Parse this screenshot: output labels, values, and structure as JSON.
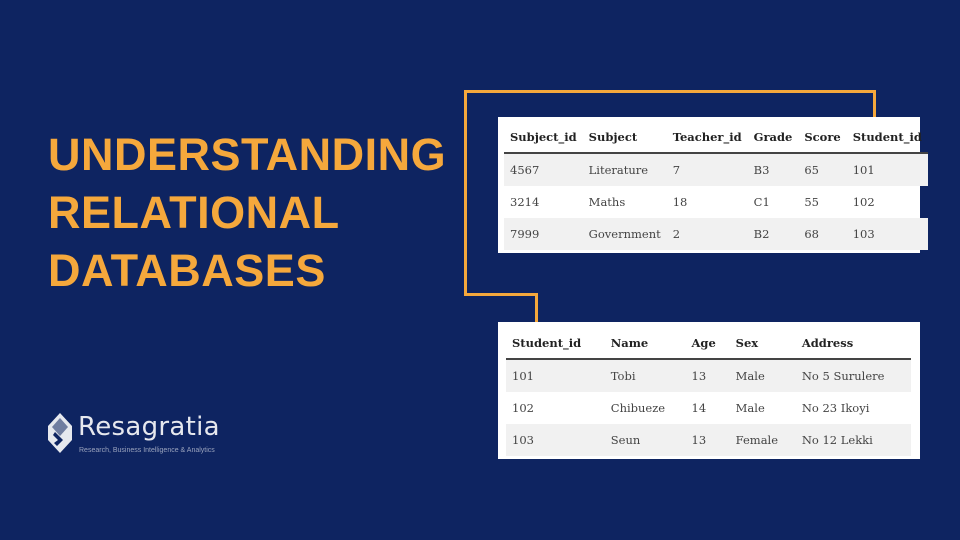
{
  "slide": {
    "title_lines": [
      "UNDERSTANDING",
      "RELATIONAL",
      "DATABASES"
    ],
    "accent_color": "#f5a83c",
    "background_color": "#0e2461"
  },
  "subjects_table": {
    "headers": [
      "Subject_id",
      "Subject",
      "Teacher_id",
      "Grade",
      "Score",
      "Student_id"
    ],
    "rows": [
      [
        "4567",
        "Literature",
        "7",
        "B3",
        "65",
        "101"
      ],
      [
        "3214",
        "Maths",
        "18",
        "C1",
        "55",
        "102"
      ],
      [
        "7999",
        "Government",
        "2",
        "B2",
        "68",
        "103"
      ]
    ]
  },
  "students_table": {
    "headers": [
      "Student_id",
      "Name",
      "Age",
      "Sex",
      "Address"
    ],
    "rows": [
      [
        "101",
        "Tobi",
        "13",
        "Male",
        "No 5 Surulere"
      ],
      [
        "102",
        "Chibueze",
        "14",
        "Male",
        "No 23 Ikoyi"
      ],
      [
        "103",
        "Seun",
        "13",
        "Female",
        "No 12 Lekki"
      ]
    ]
  },
  "logo": {
    "name": "Resagratia",
    "tagline": "Research, Business Intelligence & Analytics",
    "icon": "resagratia-logo-icon"
  }
}
